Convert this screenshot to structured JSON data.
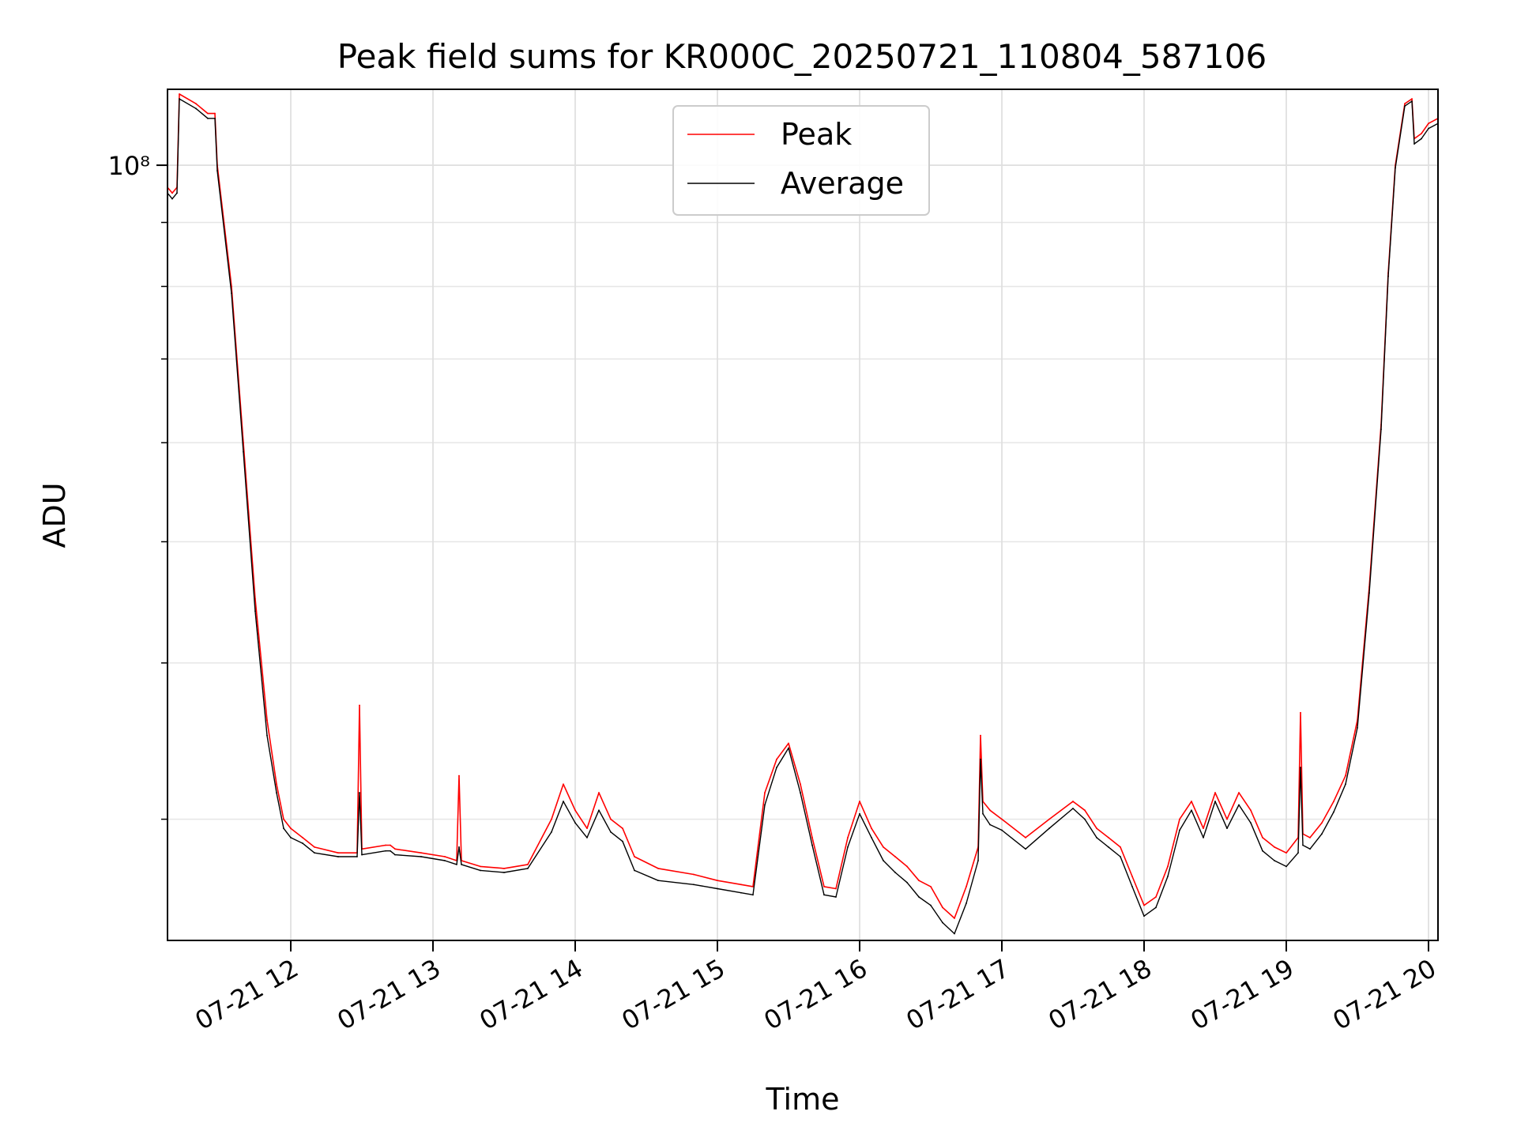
{
  "chart_data": {
    "type": "line",
    "title": "Peak field sums for KR000C_20250721_110804_587106",
    "xlabel": "Time",
    "ylabel": "ADU",
    "y_scale": "log",
    "ylim": [
      24000000,
      115000000
    ],
    "xlim": [
      "2025-07-21 11:08",
      "2025-07-21 20:04"
    ],
    "y_tick_major": [
      {
        "value": 100000000,
        "label": "10⁸"
      }
    ],
    "y_tick_minor": [
      30000000,
      40000000,
      50000000,
      60000000,
      70000000,
      80000000,
      90000000
    ],
    "x_ticks": [
      {
        "value": "2025-07-21 12:00",
        "label": "07-21 12"
      },
      {
        "value": "2025-07-21 13:00",
        "label": "07-21 13"
      },
      {
        "value": "2025-07-21 14:00",
        "label": "07-21 14"
      },
      {
        "value": "2025-07-21 15:00",
        "label": "07-21 15"
      },
      {
        "value": "2025-07-21 16:00",
        "label": "07-21 16"
      },
      {
        "value": "2025-07-21 17:00",
        "label": "07-21 17"
      },
      {
        "value": "2025-07-21 18:00",
        "label": "07-21 18"
      },
      {
        "value": "2025-07-21 19:00",
        "label": "07-21 19"
      },
      {
        "value": "2025-07-21 20:00",
        "label": "07-21 20"
      }
    ],
    "grid": true,
    "legend_position": "top-center",
    "series": [
      {
        "name": "Peak",
        "color": "#ff0000",
        "x": [
          "2025-07-21 11:08",
          "2025-07-21 11:10",
          "2025-07-21 11:12",
          "2025-07-21 11:13",
          "2025-07-21 11:20",
          "2025-07-21 11:25",
          "2025-07-21 11:28",
          "2025-07-21 11:29",
          "2025-07-21 11:35",
          "2025-07-21 11:40",
          "2025-07-21 11:45",
          "2025-07-21 11:50",
          "2025-07-21 11:54",
          "2025-07-21 11:57",
          "2025-07-21 12:00",
          "2025-07-21 12:05",
          "2025-07-21 12:10",
          "2025-07-21 12:20",
          "2025-07-21 12:28",
          "2025-07-21 12:29",
          "2025-07-21 12:30",
          "2025-07-21 12:40",
          "2025-07-21 12:42",
          "2025-07-21 12:44",
          "2025-07-21 12:55",
          "2025-07-21 13:05",
          "2025-07-21 13:10",
          "2025-07-21 13:11",
          "2025-07-21 13:12",
          "2025-07-21 13:20",
          "2025-07-21 13:30",
          "2025-07-21 13:40",
          "2025-07-21 13:50",
          "2025-07-21 13:55",
          "2025-07-21 14:00",
          "2025-07-21 14:05",
          "2025-07-21 14:10",
          "2025-07-21 14:15",
          "2025-07-21 14:20",
          "2025-07-21 14:25",
          "2025-07-21 14:35",
          "2025-07-21 14:50",
          "2025-07-21 15:00",
          "2025-07-21 15:10",
          "2025-07-21 15:15",
          "2025-07-21 15:20",
          "2025-07-21 15:25",
          "2025-07-21 15:30",
          "2025-07-21 15:35",
          "2025-07-21 15:40",
          "2025-07-21 15:45",
          "2025-07-21 15:50",
          "2025-07-21 15:55",
          "2025-07-21 16:00",
          "2025-07-21 16:05",
          "2025-07-21 16:10",
          "2025-07-21 16:15",
          "2025-07-21 16:20",
          "2025-07-21 16:25",
          "2025-07-21 16:30",
          "2025-07-21 16:35",
          "2025-07-21 16:40",
          "2025-07-21 16:45",
          "2025-07-21 16:50",
          "2025-07-21 16:51",
          "2025-07-21 16:52",
          "2025-07-21 16:55",
          "2025-07-21 17:00",
          "2025-07-21 17:10",
          "2025-07-21 17:20",
          "2025-07-21 17:30",
          "2025-07-21 17:35",
          "2025-07-21 17:40",
          "2025-07-21 17:45",
          "2025-07-21 17:50",
          "2025-07-21 17:55",
          "2025-07-21 18:00",
          "2025-07-21 18:05",
          "2025-07-21 18:10",
          "2025-07-21 18:15",
          "2025-07-21 18:20",
          "2025-07-21 18:25",
          "2025-07-21 18:30",
          "2025-07-21 18:35",
          "2025-07-21 18:40",
          "2025-07-21 18:45",
          "2025-07-21 18:50",
          "2025-07-21 18:55",
          "2025-07-21 19:00",
          "2025-07-21 19:05",
          "2025-07-21 19:06",
          "2025-07-21 19:07",
          "2025-07-21 19:10",
          "2025-07-21 19:15",
          "2025-07-21 19:20",
          "2025-07-21 19:25",
          "2025-07-21 19:30",
          "2025-07-21 19:35",
          "2025-07-21 19:40",
          "2025-07-21 19:43",
          "2025-07-21 19:46",
          "2025-07-21 19:50",
          "2025-07-21 19:53",
          "2025-07-21 19:54",
          "2025-07-21 19:57",
          "2025-07-21 20:00",
          "2025-07-21 20:04"
        ],
        "y": [
          96000000,
          95000000,
          96000000,
          114000000,
          112000000,
          110000000,
          110000000,
          100000000,
          80000000,
          60000000,
          45000000,
          36000000,
          32000000,
          30000000,
          29500000,
          29000000,
          28500000,
          28200000,
          28200000,
          37000000,
          28400000,
          28600000,
          28600000,
          28400000,
          28200000,
          28000000,
          27800000,
          32500000,
          27800000,
          27500000,
          27400000,
          27600000,
          30000000,
          32000000,
          30500000,
          29500000,
          31500000,
          30000000,
          29500000,
          28000000,
          27400000,
          27100000,
          26800000,
          26600000,
          26500000,
          31500000,
          33500000,
          34500000,
          32000000,
          29000000,
          26500000,
          26400000,
          29000000,
          31000000,
          29500000,
          28500000,
          28000000,
          27500000,
          26800000,
          26500000,
          25500000,
          25000000,
          26500000,
          28500000,
          35000000,
          31000000,
          30500000,
          30000000,
          29000000,
          30000000,
          31000000,
          30500000,
          29500000,
          29000000,
          28500000,
          27000000,
          25600000,
          26000000,
          27500000,
          30000000,
          31000000,
          29500000,
          31500000,
          30000000,
          31500000,
          30500000,
          29000000,
          28500000,
          28200000,
          29000000,
          36500000,
          29200000,
          29000000,
          29800000,
          31000000,
          32500000,
          36000000,
          46000000,
          62000000,
          82000000,
          100000000,
          112000000,
          113000000,
          105000000,
          106000000,
          108000000,
          109000000
        ]
      },
      {
        "name": "Average",
        "color": "#000000",
        "x": [
          "2025-07-21 11:08",
          "2025-07-21 11:10",
          "2025-07-21 11:12",
          "2025-07-21 11:13",
          "2025-07-21 11:20",
          "2025-07-21 11:25",
          "2025-07-21 11:28",
          "2025-07-21 11:29",
          "2025-07-21 11:35",
          "2025-07-21 11:40",
          "2025-07-21 11:45",
          "2025-07-21 11:50",
          "2025-07-21 11:54",
          "2025-07-21 11:57",
          "2025-07-21 12:00",
          "2025-07-21 12:05",
          "2025-07-21 12:10",
          "2025-07-21 12:20",
          "2025-07-21 12:28",
          "2025-07-21 12:29",
          "2025-07-21 12:30",
          "2025-07-21 12:40",
          "2025-07-21 12:42",
          "2025-07-21 12:44",
          "2025-07-21 12:55",
          "2025-07-21 13:05",
          "2025-07-21 13:10",
          "2025-07-21 13:11",
          "2025-07-21 13:12",
          "2025-07-21 13:20",
          "2025-07-21 13:30",
          "2025-07-21 13:40",
          "2025-07-21 13:50",
          "2025-07-21 13:55",
          "2025-07-21 14:00",
          "2025-07-21 14:05",
          "2025-07-21 14:10",
          "2025-07-21 14:15",
          "2025-07-21 14:20",
          "2025-07-21 14:25",
          "2025-07-21 14:35",
          "2025-07-21 14:50",
          "2025-07-21 15:00",
          "2025-07-21 15:10",
          "2025-07-21 15:15",
          "2025-07-21 15:20",
          "2025-07-21 15:25",
          "2025-07-21 15:30",
          "2025-07-21 15:35",
          "2025-07-21 15:40",
          "2025-07-21 15:45",
          "2025-07-21 15:50",
          "2025-07-21 15:55",
          "2025-07-21 16:00",
          "2025-07-21 16:05",
          "2025-07-21 16:10",
          "2025-07-21 16:15",
          "2025-07-21 16:20",
          "2025-07-21 16:25",
          "2025-07-21 16:30",
          "2025-07-21 16:35",
          "2025-07-21 16:40",
          "2025-07-21 16:45",
          "2025-07-21 16:50",
          "2025-07-21 16:51",
          "2025-07-21 16:52",
          "2025-07-21 16:55",
          "2025-07-21 17:00",
          "2025-07-21 17:10",
          "2025-07-21 17:20",
          "2025-07-21 17:30",
          "2025-07-21 17:35",
          "2025-07-21 17:40",
          "2025-07-21 17:45",
          "2025-07-21 17:50",
          "2025-07-21 17:55",
          "2025-07-21 18:00",
          "2025-07-21 18:05",
          "2025-07-21 18:10",
          "2025-07-21 18:15",
          "2025-07-21 18:20",
          "2025-07-21 18:25",
          "2025-07-21 18:30",
          "2025-07-21 18:35",
          "2025-07-21 18:40",
          "2025-07-21 18:45",
          "2025-07-21 18:50",
          "2025-07-21 18:55",
          "2025-07-21 19:00",
          "2025-07-21 19:05",
          "2025-07-21 19:06",
          "2025-07-21 19:07",
          "2025-07-21 19:10",
          "2025-07-21 19:15",
          "2025-07-21 19:20",
          "2025-07-21 19:25",
          "2025-07-21 19:30",
          "2025-07-21 19:35",
          "2025-07-21 19:40",
          "2025-07-21 19:43",
          "2025-07-21 19:46",
          "2025-07-21 19:50",
          "2025-07-21 19:53",
          "2025-07-21 19:54",
          "2025-07-21 19:57",
          "2025-07-21 20:00",
          "2025-07-21 20:04"
        ],
        "y": [
          95000000,
          94000000,
          95000000,
          113000000,
          111000000,
          109000000,
          109000000,
          99000000,
          79000000,
          59000000,
          44000000,
          35000000,
          31500000,
          29500000,
          29000000,
          28700000,
          28200000,
          28000000,
          28000000,
          31500000,
          28100000,
          28300000,
          28300000,
          28100000,
          28000000,
          27800000,
          27600000,
          28500000,
          27600000,
          27300000,
          27200000,
          27400000,
          29300000,
          31000000,
          29800000,
          29000000,
          30500000,
          29300000,
          28800000,
          27300000,
          26800000,
          26600000,
          26400000,
          26200000,
          26100000,
          30800000,
          33000000,
          34200000,
          31500000,
          28600000,
          26100000,
          26000000,
          28500000,
          30300000,
          29000000,
          27800000,
          27200000,
          26700000,
          26000000,
          25600000,
          24800000,
          24300000,
          25700000,
          27800000,
          33500000,
          30300000,
          29700000,
          29400000,
          28400000,
          29500000,
          30600000,
          30000000,
          29000000,
          28500000,
          28000000,
          26500000,
          25100000,
          25500000,
          27000000,
          29400000,
          30500000,
          29000000,
          31000000,
          29500000,
          30800000,
          29800000,
          28300000,
          27800000,
          27500000,
          28200000,
          33000000,
          28600000,
          28400000,
          29200000,
          30400000,
          32000000,
          35500000,
          45500000,
          61500000,
          81500000,
          99500000,
          111500000,
          112500000,
          104000000,
          105000000,
          107000000,
          108000000
        ]
      }
    ]
  }
}
